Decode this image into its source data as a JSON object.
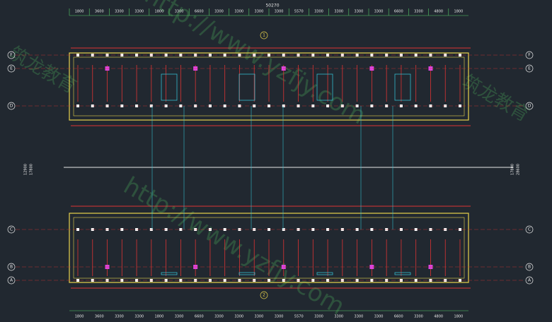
{
  "drawing": {
    "overall_dim": "50270",
    "top_dims": [
      "1800",
      "3600",
      "3300",
      "3300",
      "1800",
      "3300",
      "6600",
      "3300",
      "3300",
      "3300",
      "3300",
      "5570",
      "3300",
      "3300",
      "3300",
      "3300",
      "6600",
      "3300",
      "4800",
      "1800"
    ],
    "upper_axes": [
      "F",
      "E",
      "D"
    ],
    "lower_axes": [
      "C",
      "B",
      "A"
    ],
    "left_dims": [
      "12900",
      "17800"
    ],
    "right_dims": [
      "17800",
      "28600"
    ],
    "grid_markers": [
      "1",
      "2"
    ],
    "watermark": "http://www.yzfjy.com",
    "brand": "筑龙教育"
  }
}
